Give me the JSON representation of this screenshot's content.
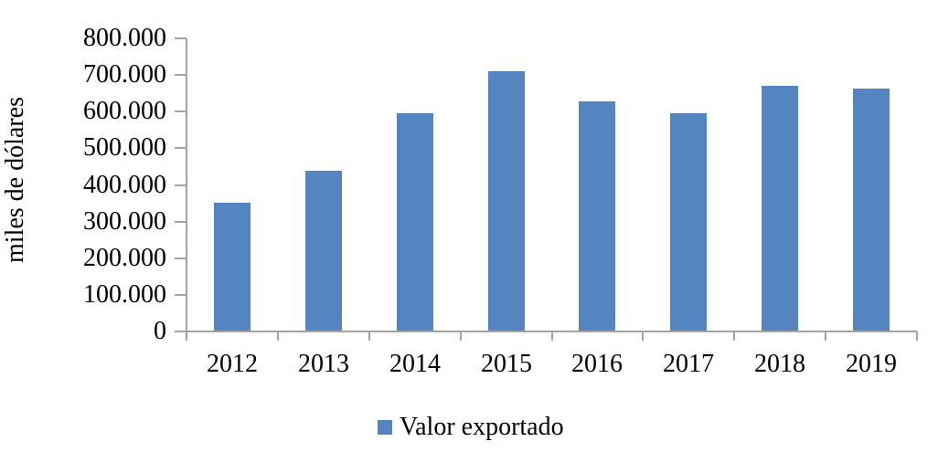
{
  "chart_data": {
    "type": "bar",
    "title": "",
    "categories": [
      "2012",
      "2013",
      "2014",
      "2015",
      "2016",
      "2017",
      "2018",
      "2019"
    ],
    "series": [
      {
        "name": "Valor exportado",
        "values": [
          348000,
          437000,
          592000,
          707000,
          625000,
          594000,
          668000,
          661000
        ]
      }
    ],
    "xlabel": "",
    "ylabel": "miles de dólares",
    "ylim": [
      0,
      800000
    ],
    "ytick_step": 100000,
    "ytick_labels": [
      "0",
      "100.000",
      "200.000",
      "300.000",
      "400.000",
      "500.000",
      "600.000",
      "700.000",
      "800.000"
    ],
    "grid": false,
    "legend": {
      "position": "bottom",
      "entries": [
        {
          "label": "Valor exportado",
          "marker": "square"
        }
      ]
    },
    "colors": {
      "bar": "#5585c1",
      "axis": "#a3a3a3",
      "text": "#000000"
    }
  }
}
